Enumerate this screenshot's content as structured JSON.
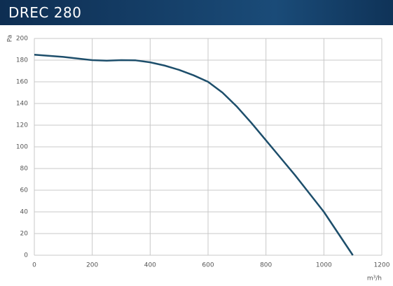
{
  "chart_data": {
    "type": "line",
    "title": "DREC 280",
    "y_label": "Pa",
    "x_label": "m³/h",
    "xlim": [
      0,
      1200
    ],
    "xticks": [
      0,
      200,
      400,
      600,
      800,
      1000,
      1200
    ],
    "ylim": [
      0,
      200
    ],
    "yticks": [
      0,
      20,
      40,
      60,
      80,
      100,
      120,
      140,
      160,
      180,
      200
    ],
    "grid": true,
    "x": [
      0,
      100,
      200,
      250,
      300,
      350,
      400,
      450,
      500,
      550,
      600,
      650,
      700,
      750,
      800,
      850,
      900,
      950,
      1000,
      1050,
      1100
    ],
    "series": [
      {
        "color": "#1d4e6b",
        "values": [
          185,
          183,
          180,
          179.5,
          180,
          179.8,
          178,
          175,
          171,
          166,
          160,
          150,
          137,
          122,
          106,
          90,
          74,
          57,
          40,
          20,
          0
        ]
      }
    ]
  }
}
